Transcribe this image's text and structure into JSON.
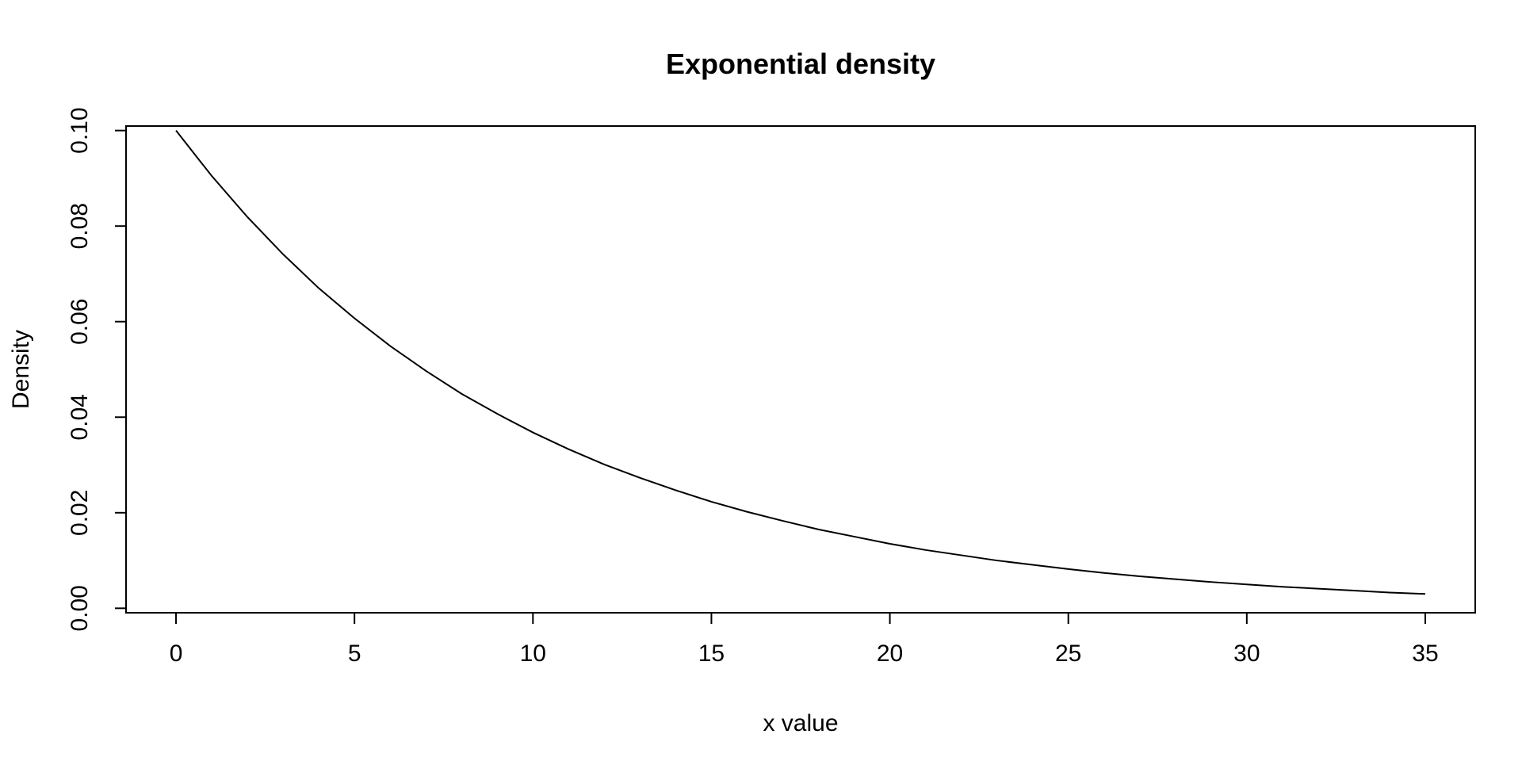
{
  "chart_data": {
    "type": "line",
    "title": "Exponential density",
    "xlabel": "x value",
    "ylabel": "Density",
    "xlim": [
      -1.4,
      36.4
    ],
    "ylim": [
      -0.00094,
      0.10094
    ],
    "x_ticks": [
      0,
      5,
      10,
      15,
      20,
      25,
      30,
      35
    ],
    "x_tick_labels": [
      "0",
      "5",
      "10",
      "15",
      "20",
      "25",
      "30",
      "35"
    ],
    "y_ticks": [
      0.0,
      0.02,
      0.04,
      0.06,
      0.08,
      0.1
    ],
    "y_tick_labels": [
      "0.00",
      "0.02",
      "0.04",
      "0.06",
      "0.08",
      "0.10"
    ],
    "grid": false,
    "line_color": "#000000",
    "series": [
      {
        "x": [
          0,
          1,
          2,
          3,
          4,
          5,
          6,
          7,
          8,
          9,
          10,
          11,
          12,
          13,
          14,
          15,
          16,
          17,
          18,
          19,
          20,
          21,
          22,
          23,
          24,
          25,
          26,
          27,
          28,
          29,
          30,
          31,
          32,
          33,
          34,
          35
        ],
        "values": [
          0.1,
          0.0905,
          0.0819,
          0.0741,
          0.067,
          0.0607,
          0.0549,
          0.0497,
          0.0449,
          0.0407,
          0.0368,
          0.0333,
          0.0301,
          0.0273,
          0.0247,
          0.0223,
          0.0202,
          0.0183,
          0.0165,
          0.015,
          0.0135,
          0.0122,
          0.0111,
          0.01,
          0.0091,
          0.0082,
          0.0074,
          0.0067,
          0.0061,
          0.0055,
          0.005,
          0.0045,
          0.0041,
          0.0037,
          0.0033,
          0.003
        ]
      }
    ]
  }
}
